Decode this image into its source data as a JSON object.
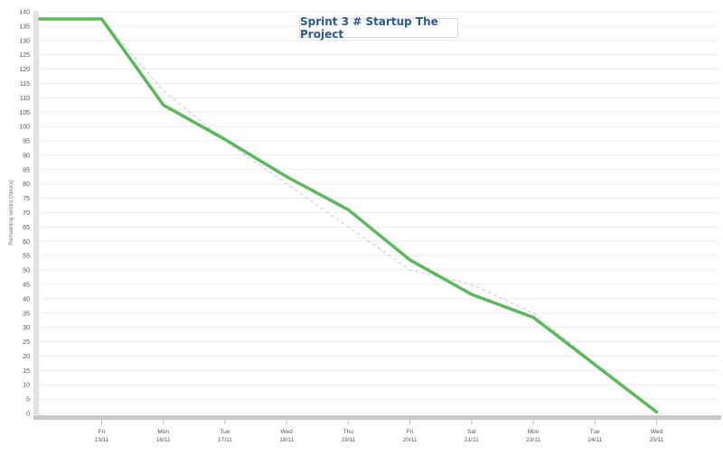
{
  "chart_data": {
    "type": "line",
    "title": "Sprint 3 # Startup The Project",
    "ylabel": "Remaining works (hours)",
    "xlabel": "",
    "ylim": [
      0,
      140
    ],
    "ytick_step": 5,
    "grid": true,
    "x_days": [
      {
        "day": "Fri",
        "date": "13/11"
      },
      {
        "day": "Mon",
        "date": "16/11"
      },
      {
        "day": "Tue",
        "date": "17/11"
      },
      {
        "day": "Wed",
        "date": "18/11"
      },
      {
        "day": "Thu",
        "date": "19/11"
      },
      {
        "day": "Fri",
        "date": "20/11"
      },
      {
        "day": "Sat",
        "date": "21/11"
      },
      {
        "day": "Mon",
        "date": "23/11"
      },
      {
        "day": "Tue",
        "date": "24/11"
      },
      {
        "day": "Wed",
        "date": "25/11"
      }
    ],
    "series": [
      {
        "style": "solid",
        "color": "#5cb85c",
        "values": [
          137.5,
          107.5,
          95.5,
          82.5,
          71,
          53.5,
          41.5,
          33.5,
          17,
          0.5
        ]
      },
      {
        "style": "dashed",
        "color": "#c9c9d4",
        "values": [
          137.5,
          112.5,
          95,
          80,
          65,
          50,
          45,
          35,
          17.5,
          0.5
        ]
      }
    ]
  }
}
